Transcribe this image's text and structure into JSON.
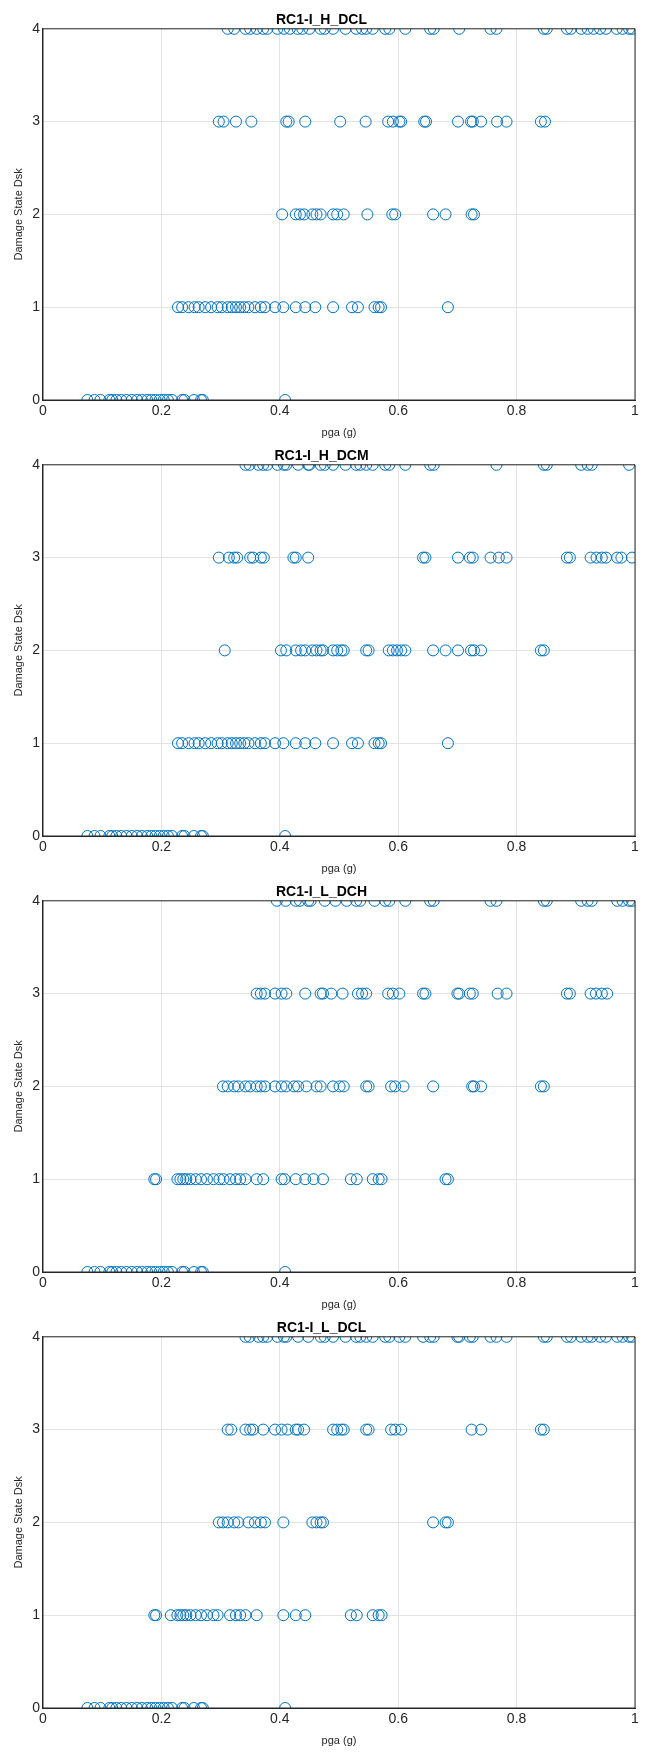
{
  "chart_data": [
    {
      "type": "scatter",
      "title": "RC1-I_H_DCL",
      "xlabel": "pga (g)",
      "ylabel": "Damage State Dsk",
      "xlim": [
        0,
        1
      ],
      "xticks": [
        0,
        0.2,
        0.4,
        0.6,
        0.8,
        1
      ],
      "ylim": [
        0,
        4
      ],
      "yticks": [
        0,
        1,
        2,
        3,
        4
      ],
      "grid": true,
      "marker": "circle",
      "series": [
        {
          "color": "#0072bd",
          "x": [
            0.075,
            0.087,
            0.097,
            0.112,
            0.117,
            0.124,
            0.132,
            0.141,
            0.15,
            0.159,
            0.167,
            0.176,
            0.183,
            0.19,
            0.197,
            0.204,
            0.211,
            0.218,
            0.235,
            0.239,
            0.255,
            0.267,
            0.27,
            0.409
          ],
          "values": [
            0,
            0,
            0,
            0,
            0,
            0,
            0,
            0,
            0,
            0,
            0,
            0,
            0,
            0,
            0,
            0,
            0,
            0,
            0,
            0,
            0,
            0,
            0,
            0
          ]
        },
        {
          "color": "#0072bd",
          "x": [
            0.228,
            0.235,
            0.246,
            0.256,
            0.263,
            0.274,
            0.284,
            0.295,
            0.302,
            0.312,
            0.319,
            0.326,
            0.333,
            0.34,
            0.347,
            0.358,
            0.368,
            0.375,
            0.392,
            0.406,
            0.427,
            0.443,
            0.46,
            0.49,
            0.522,
            0.532,
            0.56,
            0.567,
            0.571,
            0.684
          ],
          "values": [
            1,
            1,
            1,
            1,
            1,
            1,
            1,
            1,
            1,
            1,
            1,
            1,
            1,
            1,
            1,
            1,
            1,
            1,
            1,
            1,
            1,
            1,
            1,
            1,
            1,
            1,
            1,
            1,
            1,
            1
          ]
        },
        {
          "color": "#0072bd",
          "x": [
            0.404,
            0.427,
            0.434,
            0.441,
            0.455,
            0.462,
            0.469,
            0.49,
            0.497,
            0.508,
            0.548,
            0.59,
            0.595,
            0.659,
            0.68,
            0.724,
            0.728
          ],
          "values": [
            2,
            2,
            2,
            2,
            2,
            2,
            2,
            2,
            2,
            2,
            2,
            2,
            2,
            2,
            2,
            2,
            2
          ]
        },
        {
          "color": "#0072bd",
          "x": [
            0.297,
            0.305,
            0.326,
            0.352,
            0.411,
            0.415,
            0.443,
            0.502,
            0.545,
            0.583,
            0.591,
            0.602,
            0.605,
            0.644,
            0.647,
            0.701,
            0.723,
            0.726,
            0.74,
            0.767,
            0.783,
            0.841,
            0.848
          ],
          "values": [
            3,
            3,
            3,
            3,
            3,
            3,
            3,
            3,
            3,
            3,
            3,
            3,
            3,
            3,
            3,
            3,
            3,
            3,
            3,
            3,
            3,
            3,
            3
          ]
        },
        {
          "color": "#0072bd",
          "x": [
            0.312,
            0.323,
            0.342,
            0.35,
            0.361,
            0.372,
            0.379,
            0.396,
            0.407,
            0.417,
            0.43,
            0.438,
            0.45,
            0.469,
            0.476,
            0.49,
            0.511,
            0.529,
            0.539,
            0.546,
            0.557,
            0.578,
            0.585,
            0.612,
            0.654,
            0.66,
            0.703,
            0.756,
            0.766,
            0.846,
            0.851,
            0.885,
            0.892,
            0.909,
            0.92,
            0.93,
            0.941,
            0.951,
            0.969,
            0.979,
            0.99,
            0.995
          ],
          "values": [
            4,
            4,
            4,
            4,
            4,
            4,
            4,
            4,
            4,
            4,
            4,
            4,
            4,
            4,
            4,
            4,
            4,
            4,
            4,
            4,
            4,
            4,
            4,
            4,
            4,
            4,
            4,
            4,
            4,
            4,
            4,
            4,
            4,
            4,
            4,
            4,
            4,
            4,
            4,
            4,
            4,
            4
          ]
        }
      ]
    },
    {
      "type": "scatter",
      "title": "RC1-I_H_DCM",
      "xlabel": "pga (g)",
      "ylabel": "Damage State Dsk",
      "xlim": [
        0,
        1
      ],
      "xticks": [
        0,
        0.2,
        0.4,
        0.6,
        0.8,
        1
      ],
      "ylim": [
        0,
        4
      ],
      "yticks": [
        0,
        1,
        2,
        3,
        4
      ],
      "grid": true,
      "marker": "circle",
      "series": [
        {
          "color": "#0072bd",
          "x": [
            0.075,
            0.087,
            0.097,
            0.112,
            0.117,
            0.124,
            0.132,
            0.141,
            0.15,
            0.159,
            0.167,
            0.176,
            0.183,
            0.19,
            0.197,
            0.204,
            0.211,
            0.218,
            0.235,
            0.239,
            0.255,
            0.267,
            0.27,
            0.409
          ],
          "values": [
            0,
            0,
            0,
            0,
            0,
            0,
            0,
            0,
            0,
            0,
            0,
            0,
            0,
            0,
            0,
            0,
            0,
            0,
            0,
            0,
            0,
            0,
            0,
            0
          ]
        },
        {
          "color": "#0072bd",
          "x": [
            0.228,
            0.235,
            0.246,
            0.256,
            0.263,
            0.274,
            0.284,
            0.295,
            0.302,
            0.312,
            0.319,
            0.326,
            0.333,
            0.34,
            0.347,
            0.358,
            0.368,
            0.375,
            0.392,
            0.406,
            0.427,
            0.443,
            0.46,
            0.49,
            0.522,
            0.532,
            0.56,
            0.567,
            0.571,
            0.684
          ],
          "values": [
            1,
            1,
            1,
            1,
            1,
            1,
            1,
            1,
            1,
            1,
            1,
            1,
            1,
            1,
            1,
            1,
            1,
            1,
            1,
            1,
            1,
            1,
            1,
            1,
            1,
            1,
            1,
            1,
            1,
            1
          ]
        },
        {
          "color": "#0072bd",
          "x": [
            0.307,
            0.402,
            0.411,
            0.427,
            0.436,
            0.443,
            0.455,
            0.462,
            0.469,
            0.473,
            0.49,
            0.497,
            0.504,
            0.508,
            0.546,
            0.55,
            0.584,
            0.591,
            0.598,
            0.605,
            0.612,
            0.659,
            0.68,
            0.701,
            0.723,
            0.728,
            0.74,
            0.841,
            0.846
          ],
          "values": [
            2,
            2,
            2,
            2,
            2,
            2,
            2,
            2,
            2,
            2,
            2,
            2,
            2,
            2,
            2,
            2,
            2,
            2,
            2,
            2,
            2,
            2,
            2,
            2,
            2,
            2,
            2,
            2,
            2
          ]
        },
        {
          "color": "#0072bd",
          "x": [
            0.297,
            0.314,
            0.323,
            0.328,
            0.35,
            0.355,
            0.368,
            0.373,
            0.423,
            0.427,
            0.448,
            0.642,
            0.646,
            0.701,
            0.721,
            0.726,
            0.756,
            0.77,
            0.783,
            0.885,
            0.89,
            0.925,
            0.935,
            0.944,
            0.951,
            0.97,
            0.977,
            0.995
          ],
          "values": [
            3,
            3,
            3,
            3,
            3,
            3,
            3,
            3,
            3,
            3,
            3,
            3,
            3,
            3,
            3,
            3,
            3,
            3,
            3,
            3,
            3,
            3,
            3,
            3,
            3,
            3,
            3,
            3
          ]
        },
        {
          "color": "#0072bd",
          "x": [
            0.342,
            0.349,
            0.364,
            0.372,
            0.379,
            0.396,
            0.407,
            0.411,
            0.431,
            0.448,
            0.45,
            0.469,
            0.476,
            0.49,
            0.511,
            0.529,
            0.536,
            0.546,
            0.557,
            0.578,
            0.585,
            0.612,
            0.654,
            0.66,
            0.766,
            0.846,
            0.851,
            0.909,
            0.92,
            0.927,
            0.99
          ],
          "values": [
            4,
            4,
            4,
            4,
            4,
            4,
            4,
            4,
            4,
            4,
            4,
            4,
            4,
            4,
            4,
            4,
            4,
            4,
            4,
            4,
            4,
            4,
            4,
            4,
            4,
            4,
            4,
            4,
            4,
            4,
            4
          ]
        }
      ]
    },
    {
      "type": "scatter",
      "title": "RC1-I_L_DCH",
      "xlabel": "pga (g)",
      "ylabel": "Damage State Dsk",
      "xlim": [
        0,
        1
      ],
      "xticks": [
        0,
        0.2,
        0.4,
        0.6,
        0.8,
        1
      ],
      "ylim": [
        0,
        4
      ],
      "yticks": [
        0,
        1,
        2,
        3,
        4
      ],
      "grid": true,
      "marker": "circle",
      "series": [
        {
          "color": "#0072bd",
          "x": [
            0.075,
            0.087,
            0.097,
            0.112,
            0.117,
            0.124,
            0.132,
            0.141,
            0.15,
            0.159,
            0.167,
            0.176,
            0.183,
            0.19,
            0.197,
            0.204,
            0.211,
            0.218,
            0.235,
            0.239,
            0.255,
            0.267,
            0.27,
            0.409
          ],
          "values": [
            0,
            0,
            0,
            0,
            0,
            0,
            0,
            0,
            0,
            0,
            0,
            0,
            0,
            0,
            0,
            0,
            0,
            0,
            0,
            0,
            0,
            0,
            0,
            0
          ]
        },
        {
          "color": "#0072bd",
          "x": [
            0.188,
            0.191,
            0.227,
            0.232,
            0.237,
            0.242,
            0.249,
            0.258,
            0.267,
            0.277,
            0.288,
            0.298,
            0.305,
            0.316,
            0.326,
            0.333,
            0.342,
            0.361,
            0.372,
            0.403,
            0.408,
            0.427,
            0.443,
            0.457,
            0.473,
            0.52,
            0.53,
            0.557,
            0.567,
            0.572,
            0.68,
            0.684
          ],
          "values": [
            1,
            1,
            1,
            1,
            1,
            1,
            1,
            1,
            1,
            1,
            1,
            1,
            1,
            1,
            1,
            1,
            1,
            1,
            1,
            1,
            1,
            1,
            1,
            1,
            1,
            1,
            1,
            1,
            1,
            1,
            1,
            1
          ]
        },
        {
          "color": "#0072bd",
          "x": [
            0.304,
            0.312,
            0.323,
            0.33,
            0.342,
            0.35,
            0.361,
            0.368,
            0.375,
            0.392,
            0.403,
            0.411,
            0.424,
            0.431,
            0.445,
            0.462,
            0.469,
            0.49,
            0.501,
            0.508,
            0.546,
            0.55,
            0.588,
            0.595,
            0.609,
            0.659,
            0.725,
            0.728,
            0.74,
            0.841,
            0.846
          ],
          "values": [
            2,
            2,
            2,
            2,
            2,
            2,
            2,
            2,
            2,
            2,
            2,
            2,
            2,
            2,
            2,
            2,
            2,
            2,
            2,
            2,
            2,
            2,
            2,
            2,
            2,
            2,
            2,
            2,
            2,
            2,
            2
          ]
        },
        {
          "color": "#0072bd",
          "x": [
            0.361,
            0.368,
            0.375,
            0.392,
            0.403,
            0.411,
            0.443,
            0.469,
            0.473,
            0.487,
            0.506,
            0.532,
            0.539,
            0.546,
            0.583,
            0.591,
            0.602,
            0.642,
            0.646,
            0.7,
            0.703,
            0.721,
            0.726,
            0.768,
            0.783,
            0.885,
            0.89,
            0.925,
            0.934,
            0.944,
            0.953
          ],
          "values": [
            3,
            3,
            3,
            3,
            3,
            3,
            3,
            3,
            3,
            3,
            3,
            3,
            3,
            3,
            3,
            3,
            3,
            3,
            3,
            3,
            3,
            3,
            3,
            3,
            3,
            3,
            3,
            3,
            3,
            3,
            3
          ]
        },
        {
          "color": "#0072bd",
          "x": [
            0.395,
            0.41,
            0.427,
            0.434,
            0.448,
            0.452,
            0.476,
            0.494,
            0.513,
            0.529,
            0.536,
            0.56,
            0.578,
            0.585,
            0.612,
            0.654,
            0.66,
            0.756,
            0.766,
            0.846,
            0.851,
            0.909,
            0.92,
            0.927,
            0.97,
            0.979,
            0.99,
            0.995
          ],
          "values": [
            4,
            4,
            4,
            4,
            4,
            4,
            4,
            4,
            4,
            4,
            4,
            4,
            4,
            4,
            4,
            4,
            4,
            4,
            4,
            4,
            4,
            4,
            4,
            4,
            4,
            4,
            4,
            4
          ]
        }
      ]
    },
    {
      "type": "scatter",
      "title": "RC1-I_L_DCL",
      "xlabel": "pga (g)",
      "ylabel": "Damage State Dsk",
      "xlim": [
        0,
        1
      ],
      "xticks": [
        0,
        0.2,
        0.4,
        0.6,
        0.8,
        1
      ],
      "ylim": [
        0,
        4
      ],
      "yticks": [
        0,
        1,
        2,
        3,
        4
      ],
      "grid": true,
      "marker": "circle",
      "series": [
        {
          "color": "#0072bd",
          "x": [
            0.075,
            0.087,
            0.097,
            0.112,
            0.117,
            0.124,
            0.132,
            0.141,
            0.15,
            0.159,
            0.167,
            0.176,
            0.183,
            0.19,
            0.197,
            0.204,
            0.211,
            0.218,
            0.235,
            0.239,
            0.255,
            0.267,
            0.27,
            0.409
          ],
          "values": [
            0,
            0,
            0,
            0,
            0,
            0,
            0,
            0,
            0,
            0,
            0,
            0,
            0,
            0,
            0,
            0,
            0,
            0,
            0,
            0,
            0,
            0,
            0,
            0
          ]
        },
        {
          "color": "#0072bd",
          "x": [
            0.188,
            0.191,
            0.216,
            0.227,
            0.232,
            0.237,
            0.242,
            0.249,
            0.258,
            0.267,
            0.277,
            0.288,
            0.295,
            0.316,
            0.326,
            0.333,
            0.342,
            0.361,
            0.406,
            0.427,
            0.443,
            0.52,
            0.53,
            0.557,
            0.567,
            0.572
          ],
          "values": [
            1,
            1,
            1,
            1,
            1,
            1,
            1,
            1,
            1,
            1,
            1,
            1,
            1,
            1,
            1,
            1,
            1,
            1,
            1,
            1,
            1,
            1,
            1,
            1,
            1,
            1
          ]
        },
        {
          "color": "#0072bd",
          "x": [
            0.297,
            0.304,
            0.312,
            0.323,
            0.33,
            0.347,
            0.358,
            0.368,
            0.375,
            0.406,
            0.455,
            0.462,
            0.469,
            0.473,
            0.659,
            0.68,
            0.684
          ],
          "values": [
            2,
            2,
            2,
            2,
            2,
            2,
            2,
            2,
            2,
            2,
            2,
            2,
            2,
            2,
            2,
            2,
            2
          ]
        },
        {
          "color": "#0072bd",
          "x": [
            0.312,
            0.318,
            0.342,
            0.35,
            0.355,
            0.372,
            0.392,
            0.403,
            0.413,
            0.427,
            0.431,
            0.441,
            0.49,
            0.497,
            0.504,
            0.508,
            0.546,
            0.55,
            0.588,
            0.595,
            0.605,
            0.724,
            0.74,
            0.841,
            0.846
          ],
          "values": [
            3,
            3,
            3,
            3,
            3,
            3,
            3,
            3,
            3,
            3,
            3,
            3,
            3,
            3,
            3,
            3,
            3,
            3,
            3,
            3,
            3,
            3,
            3,
            3,
            3
          ]
        },
        {
          "color": "#0072bd",
          "x": [
            0.342,
            0.349,
            0.364,
            0.372,
            0.379,
            0.396,
            0.407,
            0.411,
            0.431,
            0.448,
            0.469,
            0.476,
            0.49,
            0.511,
            0.529,
            0.536,
            0.546,
            0.557,
            0.578,
            0.585,
            0.602,
            0.612,
            0.642,
            0.654,
            0.66,
            0.7,
            0.703,
            0.721,
            0.726,
            0.756,
            0.766,
            0.783,
            0.846,
            0.851,
            0.885,
            0.892,
            0.909,
            0.92,
            0.927,
            0.941,
            0.951,
            0.97,
            0.979,
            0.99,
            0.995
          ],
          "values": [
            4,
            4,
            4,
            4,
            4,
            4,
            4,
            4,
            4,
            4,
            4,
            4,
            4,
            4,
            4,
            4,
            4,
            4,
            4,
            4,
            4,
            4,
            4,
            4,
            4,
            4,
            4,
            4,
            4,
            4,
            4,
            4,
            4,
            4,
            4,
            4,
            4,
            4,
            4,
            4,
            4,
            4,
            4,
            4,
            4
          ]
        }
      ]
    }
  ]
}
